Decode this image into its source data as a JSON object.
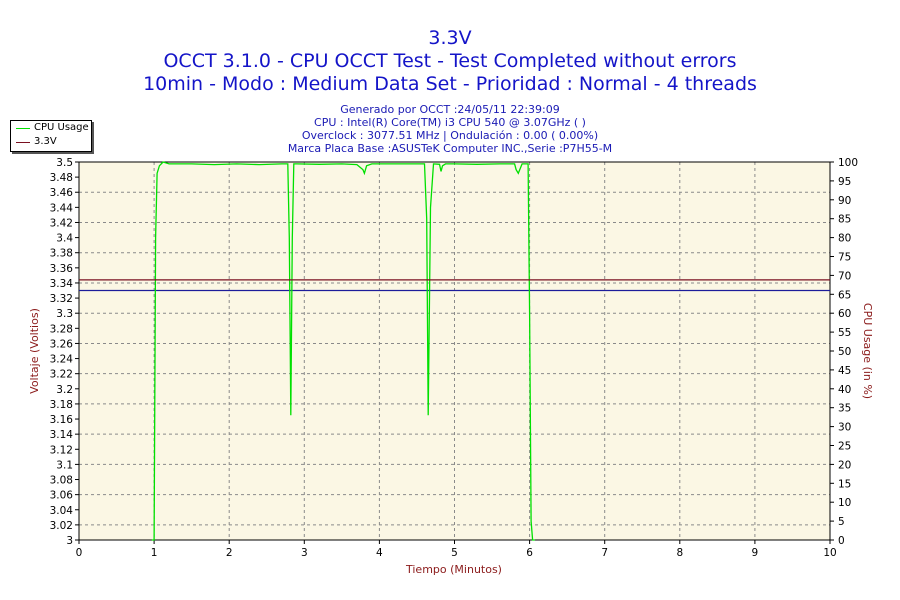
{
  "header": {
    "title": "3.3V",
    "subtitle1": "OCCT 3.1.0 - CPU OCCT Test - Test Completed without errors",
    "subtitle2": "10min - Modo : Medium Data Set - Prioridad : Normal - 4 threads",
    "info": [
      "Generado por OCCT :24/05/11 22:39:09",
      "CPU : Intel(R) Core(TM) i3 CPU 540 @ 3.07GHz (  )",
      "Overclock : 3077.51 MHz | Ondulación : 0.00 ( 0.00%)",
      "Marca Placa Base :ASUSTeK Computer INC.,Serie :P7H55-M"
    ]
  },
  "colors": {
    "plot_bg": "#fbf7e4",
    "grid": "#8a8a8a",
    "cpu_series": "#00e000",
    "volt_series": "#7a1020",
    "hline_blue": "#1c1c9a",
    "axis_label": "#8b1a1a",
    "text": "#1414c8"
  },
  "chart_data": {
    "type": "line",
    "xlabel": "Tiempo (Minutos)",
    "ylabel": "Voltaje (Voltios)",
    "y2label": "CPU Usage (in %)",
    "xlim": [
      0,
      10
    ],
    "ylim": [
      3.0,
      3.5
    ],
    "y2lim": [
      0,
      100
    ],
    "x_ticks": [
      "0",
      "1",
      "2",
      "3",
      "4",
      "5",
      "6",
      "7",
      "8",
      "9",
      "10"
    ],
    "y_ticks": [
      "3",
      "3.02",
      "3.04",
      "3.06",
      "3.08",
      "3.1",
      "3.12",
      "3.14",
      "3.16",
      "3.18",
      "3.2",
      "3.22",
      "3.24",
      "3.26",
      "3.28",
      "3.3",
      "3.32",
      "3.34",
      "3.36",
      "3.38",
      "3.4",
      "3.42",
      "3.44",
      "3.46",
      "3.48",
      "3.5"
    ],
    "y2_ticks": [
      "0",
      "5",
      "10",
      "15",
      "20",
      "25",
      "30",
      "35",
      "40",
      "45",
      "50",
      "55",
      "60",
      "65",
      "70",
      "75",
      "80",
      "85",
      "90",
      "95",
      "100"
    ],
    "grid": true,
    "legend_position": "top-left",
    "series": [
      {
        "name": "CPU Usage",
        "axis": "right",
        "x": [
          0.97,
          1.0,
          1.02,
          1.04,
          1.07,
          1.12,
          1.2,
          1.5,
          1.8,
          2.1,
          2.4,
          2.7,
          2.78,
          2.8,
          2.82,
          2.84,
          2.86,
          2.9,
          3.2,
          3.5,
          3.7,
          3.78,
          3.8,
          3.83,
          3.9,
          4.2,
          4.5,
          4.6,
          4.63,
          4.65,
          4.68,
          4.72,
          4.8,
          4.82,
          4.84,
          4.88,
          5.0,
          5.3,
          5.6,
          5.8,
          5.82,
          5.85,
          5.9,
          5.98,
          6.0,
          6.02,
          6.04,
          6.07
        ],
        "values": [
          0,
          0,
          80,
          97,
          99,
          100,
          99.5,
          99.5,
          99.3,
          99.5,
          99.3,
          99.5,
          99.5,
          80,
          33,
          80,
          99.5,
          99.5,
          99.4,
          99.5,
          99.3,
          98,
          97,
          99,
          99.5,
          99.5,
          99.5,
          99.5,
          85,
          33,
          88,
          99.5,
          99.4,
          97.5,
          99,
          99.5,
          99.5,
          99.4,
          99.5,
          99.5,
          98,
          97,
          99.5,
          99.5,
          60,
          5,
          0,
          0
        ]
      },
      {
        "name": "3.3V",
        "axis": "left",
        "x": [
          0,
          10
        ],
        "values": [
          3.344,
          3.344
        ]
      }
    ],
    "reference_lines": [
      {
        "axis": "left",
        "value": 3.33
      }
    ]
  }
}
